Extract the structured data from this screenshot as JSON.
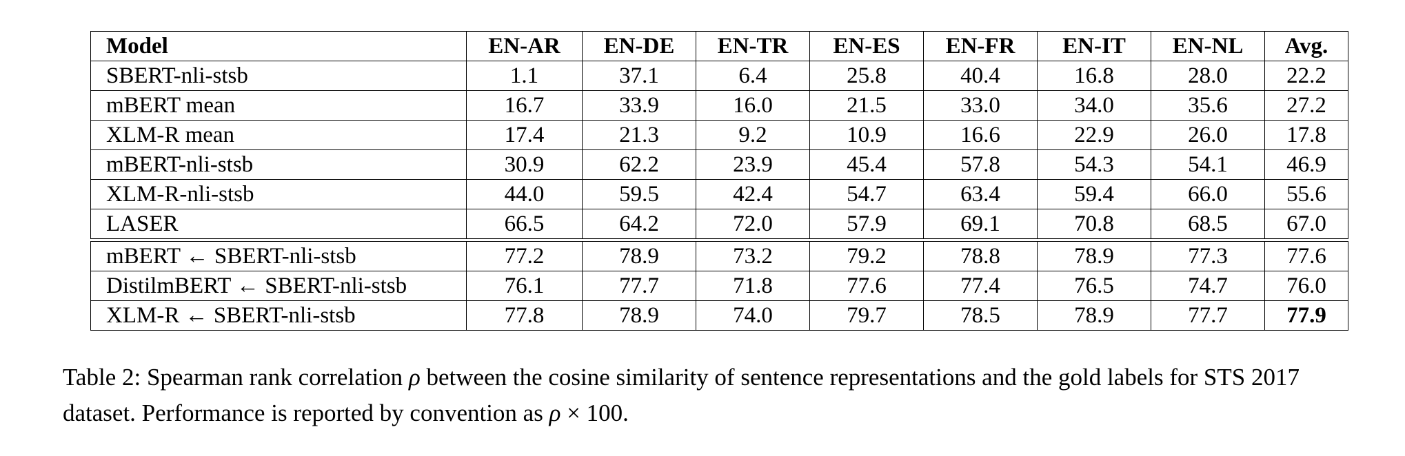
{
  "table": {
    "headers": [
      "Model",
      "EN-AR",
      "EN-DE",
      "EN-TR",
      "EN-ES",
      "EN-FR",
      "EN-IT",
      "EN-NL",
      "Avg."
    ],
    "group1": [
      {
        "model": "SBERT-nli-stsb",
        "values": [
          "1.1",
          "37.1",
          "6.4",
          "25.8",
          "40.4",
          "16.8",
          "28.0",
          "22.2"
        ]
      },
      {
        "model": "mBERT mean",
        "values": [
          "16.7",
          "33.9",
          "16.0",
          "21.5",
          "33.0",
          "34.0",
          "35.6",
          "27.2"
        ]
      },
      {
        "model": "XLM-R mean",
        "values": [
          "17.4",
          "21.3",
          "9.2",
          "10.9",
          "16.6",
          "22.9",
          "26.0",
          "17.8"
        ]
      },
      {
        "model": "mBERT-nli-stsb",
        "values": [
          "30.9",
          "62.2",
          "23.9",
          "45.4",
          "57.8",
          "54.3",
          "54.1",
          "46.9"
        ]
      },
      {
        "model": "XLM-R-nli-stsb",
        "values": [
          "44.0",
          "59.5",
          "42.4",
          "54.7",
          "63.4",
          "59.4",
          "66.0",
          "55.6"
        ]
      },
      {
        "model": "LASER",
        "values": [
          "66.5",
          "64.2",
          "72.0",
          "57.9",
          "69.1",
          "70.8",
          "68.5",
          "67.0"
        ]
      }
    ],
    "group2": [
      {
        "model": "mBERT ← SBERT-nli-stsb",
        "values": [
          "77.2",
          "78.9",
          "73.2",
          "79.2",
          "78.8",
          "78.9",
          "77.3",
          "77.6"
        ]
      },
      {
        "model": "DistilmBERT ← SBERT-nli-stsb",
        "values": [
          "76.1",
          "77.7",
          "71.8",
          "77.6",
          "77.4",
          "76.5",
          "74.7",
          "76.0"
        ]
      },
      {
        "model": "XLM-R ← SBERT-nli-stsb",
        "values": [
          "77.8",
          "78.9",
          "74.0",
          "79.7",
          "78.5",
          "78.9",
          "77.7",
          "77.9"
        ],
        "bold_index": 7
      }
    ]
  },
  "caption": {
    "prefix": "Table 2: Spearman rank correlation ",
    "rho": "ρ",
    "middle": " between the cosine similarity of sentence representations and the gold labels for STS 2017 dataset. Performance is reported by convention as ",
    "rho2": "ρ",
    "suffix": " × 100."
  }
}
